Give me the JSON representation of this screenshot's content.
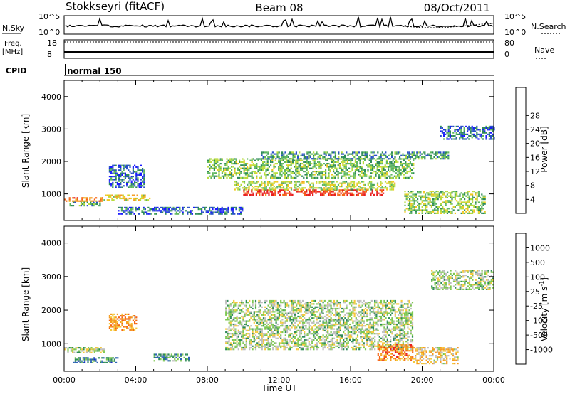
{
  "header": {
    "station": "Stokkseyri (fitACF)",
    "beam": "Beam 08",
    "date": "08/Oct/2011"
  },
  "side_labels": {
    "nsky": "N.Sky",
    "nsearch": "N.Search",
    "freq_line1": "Freq.",
    "freq_line2": "[MHz]",
    "nave": "Nave",
    "cpid": "CPID",
    "cpid_value": "normal 150"
  },
  "strip_ticks": {
    "nsky_left": [
      "10^5",
      "10^0"
    ],
    "nsky_right": [
      "10^5",
      "10^0"
    ],
    "freq_left": [
      "18",
      "8"
    ],
    "nave_right": [
      "80",
      "0"
    ]
  },
  "chart_data": [
    {
      "type": "heatmap",
      "name": "power-panel",
      "ylabel": "Slant Range [km]",
      "xlabel": "",
      "x_range_hours": [
        0,
        24
      ],
      "ylim": [
        180,
        4500
      ],
      "y_ticks": [
        1000,
        2000,
        3000,
        4000
      ],
      "colorbar_label": "Power [dB]",
      "colorbar_ticks": [
        "4",
        "8",
        "12",
        "16",
        "20",
        "24",
        "28"
      ],
      "colorbar_colors": [
        "#1a1aff",
        "#2850c8",
        "#2e8b57",
        "#5fb85f",
        "#b8dc3c",
        "#f0c81e",
        "#f59b1e",
        "#f56414",
        "#e81e1e"
      ],
      "bands": [
        {
          "t0": 0.0,
          "t1": 2.2,
          "r0": 780,
          "r1": 900,
          "level": 0.75
        },
        {
          "t0": 2.2,
          "t1": 4.8,
          "r0": 800,
          "r1": 980,
          "level": 0.6
        },
        {
          "t0": 0.3,
          "t1": 2.0,
          "r0": 620,
          "r1": 760,
          "level": 0.35
        },
        {
          "t0": 10.0,
          "t1": 17.8,
          "r0": 960,
          "r1": 1140,
          "level": 0.95
        },
        {
          "t0": 9.5,
          "t1": 18.5,
          "r0": 1150,
          "r1": 1400,
          "level": 0.5
        },
        {
          "t0": 8.0,
          "t1": 19.5,
          "r0": 1500,
          "r1": 2100,
          "level": 0.4
        },
        {
          "t0": 11.0,
          "t1": 21.5,
          "r0": 2100,
          "r1": 2300,
          "level": 0.3
        },
        {
          "t0": 2.5,
          "t1": 4.5,
          "r0": 1200,
          "r1": 1900,
          "level": 0.2
        },
        {
          "t0": 3.0,
          "t1": 10.0,
          "r0": 400,
          "r1": 600,
          "level": 0.2
        },
        {
          "t0": 19.0,
          "t1": 23.5,
          "r0": 400,
          "r1": 1100,
          "level": 0.45
        },
        {
          "t0": 21.0,
          "t1": 24.0,
          "r0": 2700,
          "r1": 3100,
          "level": 0.2
        }
      ]
    },
    {
      "type": "heatmap",
      "name": "velocity-panel",
      "ylabel": "Slant Range [km]",
      "xlabel": "Time UT",
      "x_range_hours": [
        0,
        24
      ],
      "x_tick_labels": [
        "00:00",
        "04:00",
        "08:00",
        "12:00",
        "16:00",
        "20:00",
        "00:00"
      ],
      "ylim": [
        180,
        4500
      ],
      "y_ticks": [
        1000,
        2000,
        3000,
        4000
      ],
      "colorbar_label": "Velocity [m s^-1]",
      "colorbar_ticks": [
        "1000",
        "500",
        "100",
        "25",
        "-25",
        "-100",
        "-500",
        "-1000"
      ],
      "colorbar_colors": [
        "#1a2cc8",
        "#2e64b4",
        "#2e8b57",
        "#7ec850",
        "#bebebe",
        "#f5c83c",
        "#f59b1e",
        "#f56414",
        "#e81e1e"
      ],
      "bands": [
        {
          "t0": 0.0,
          "t1": 2.2,
          "r0": 740,
          "r1": 900,
          "level": 0.45
        },
        {
          "t0": 9.0,
          "t1": 19.5,
          "r0": 850,
          "r1": 2300,
          "level": 0.45
        },
        {
          "t0": 20.5,
          "t1": 24.0,
          "r0": 2600,
          "r1": 3200,
          "level": 0.45
        },
        {
          "t0": 2.5,
          "t1": 4.0,
          "r0": 1400,
          "r1": 1900,
          "level": 0.72
        },
        {
          "t0": 0.5,
          "t1": 3.0,
          "r0": 450,
          "r1": 600,
          "level": 0.25
        },
        {
          "t0": 17.5,
          "t1": 19.5,
          "r0": 500,
          "r1": 1000,
          "level": 0.78
        },
        {
          "t0": 19.5,
          "t1": 22.0,
          "r0": 400,
          "r1": 900,
          "level": 0.6
        },
        {
          "t0": 5.0,
          "t1": 7.0,
          "r0": 500,
          "r1": 700,
          "level": 0.3
        }
      ]
    }
  ]
}
